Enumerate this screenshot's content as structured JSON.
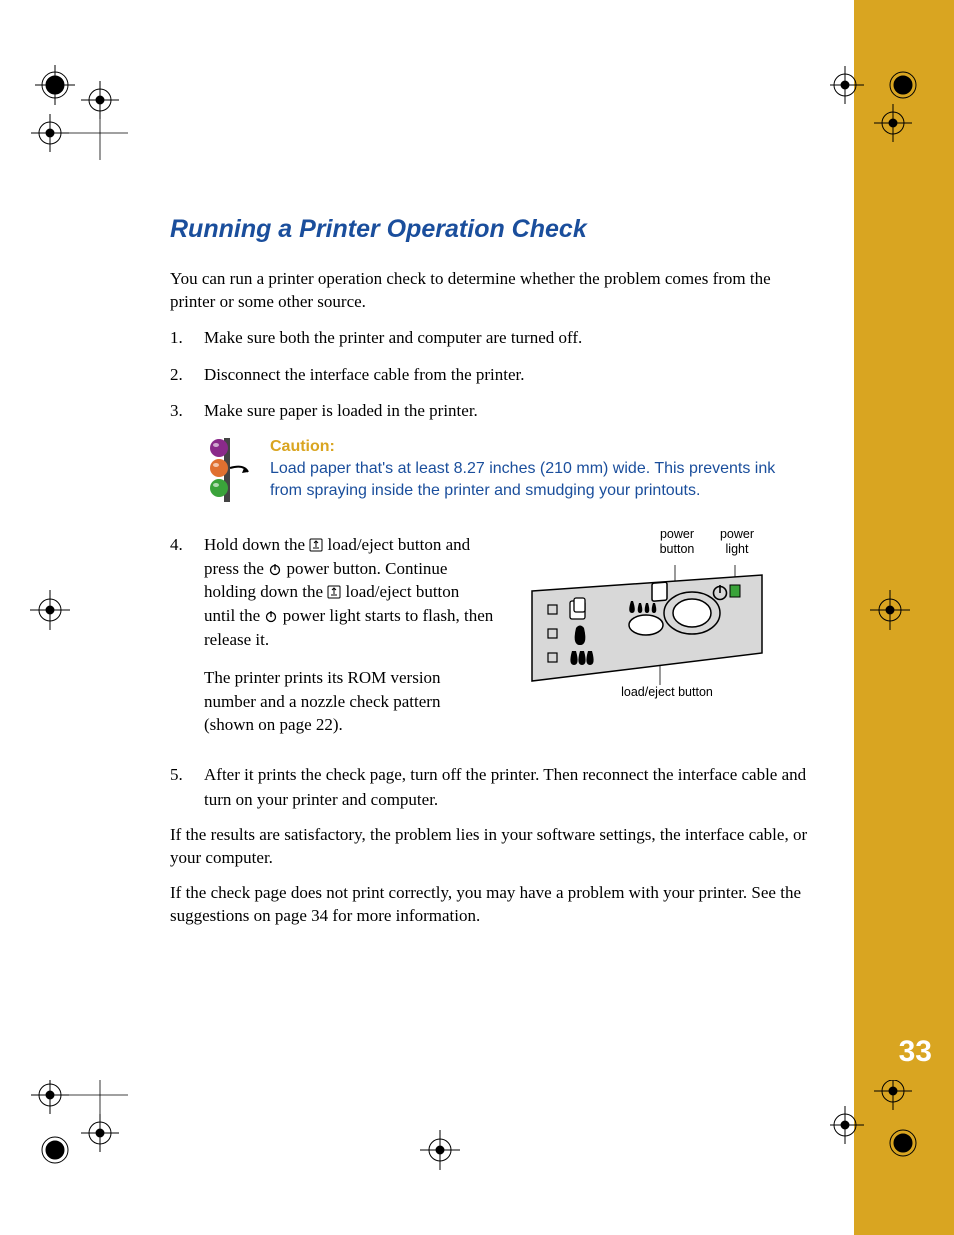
{
  "page": {
    "number": "33"
  },
  "title": "Running a Printer Operation Check",
  "intro": "You can run a printer operation check to determine whether the problem comes from the printer or some other source.",
  "steps": {
    "s1": "Make sure both the printer and computer are turned off.",
    "s2": "Disconnect the interface cable from the printer.",
    "s3": "Make sure paper is loaded in the printer.",
    "s4a_before_icon1": "Hold down the ",
    "s4a_loadeject": " load/eject button and press the ",
    "s4a_power": " power button. Continue holding down the ",
    "s4a_loadeject2": " load/eject button until the ",
    "s4a_end": " power light starts to flash, then release it.",
    "s4b": "The printer prints its ROM version number and a nozzle check pattern (shown on page 22).",
    "s5": "After it prints the check page, turn off the printer. Then reconnect the interface cable and turn on your printer and computer."
  },
  "caution": {
    "title": "Caution:",
    "body": "Load paper that's at least 8.27 inches (210 mm) wide. This prevents ink from spraying inside the printer and smudging your printouts."
  },
  "closing": {
    "p1": "If the results are satisfactory, the problem lies in your software settings, the interface cable, or your computer.",
    "p2": "If the check page does not print correctly, you may have a problem with your printer. See the suggestions on page 34 for more information."
  },
  "figure": {
    "label_power_button": "power\nbutton",
    "label_power_light": "power\nlight",
    "label_load_eject": "load/eject button"
  },
  "colors": {
    "accent": "#1a4e9c",
    "sidebar": "#d9a521",
    "caution_title": "#d9a521",
    "caution_body": "#1a4e9c",
    "icon_red": "#c8305c",
    "icon_orange": "#e07030",
    "icon_green": "#3aa33a",
    "icon_purple": "#8a2a8a"
  }
}
